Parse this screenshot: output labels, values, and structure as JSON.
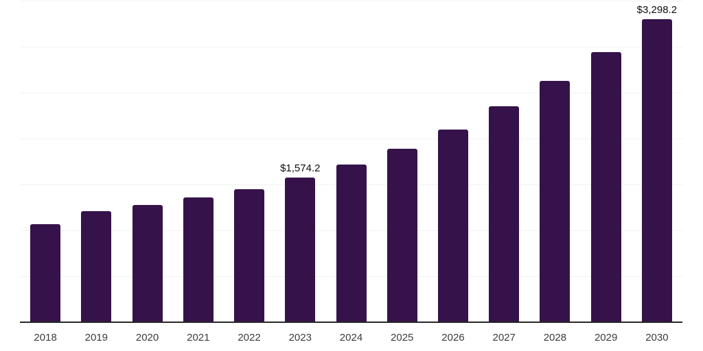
{
  "chart_data": {
    "type": "bar",
    "title": "",
    "xlabel": "",
    "ylabel": "",
    "categories": [
      "2018",
      "2019",
      "2020",
      "2021",
      "2022",
      "2023",
      "2024",
      "2025",
      "2026",
      "2027",
      "2028",
      "2029",
      "2030"
    ],
    "values": [
      1064,
      1206,
      1273,
      1355,
      1445,
      1574.2,
      1720,
      1891,
      2100,
      2353,
      2629,
      2941,
      3298.2
    ],
    "value_labels": {
      "2023": "$1,574.2",
      "2030": "$3,298.2"
    },
    "ylim": [
      0,
      3500
    ],
    "grid": true,
    "grid_step": 500,
    "legend": false,
    "colors": {
      "bar": "#351249",
      "gridline": "#f2f2f2",
      "axis_line": "#262626",
      "tick_label": "#3b3b3b",
      "value_label": "#0d0d0d",
      "background": "#ffffff"
    }
  }
}
